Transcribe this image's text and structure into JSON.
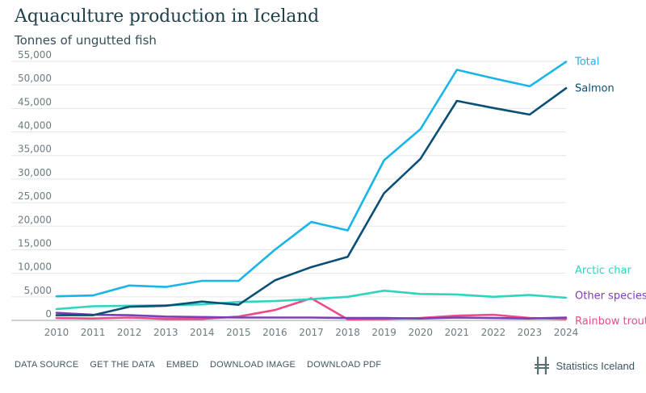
{
  "header": {
    "title": "Aquaculture production in Iceland",
    "subtitle": "Tonnes of ungutted fish"
  },
  "footer": {
    "links": [
      "DATA SOURCE",
      "GET THE DATA",
      "EMBED",
      "DOWNLOAD IMAGE",
      "DOWNLOAD PDF"
    ],
    "brand": "Statistics Iceland"
  },
  "chart_data": {
    "type": "line",
    "title": "Aquaculture production in Iceland",
    "subtitle": "Tonnes of ungutted fish",
    "xlabel": "",
    "ylabel": "",
    "x": [
      2010,
      2011,
      2012,
      2013,
      2014,
      2015,
      2016,
      2017,
      2018,
      2019,
      2020,
      2021,
      2022,
      2023,
      2024
    ],
    "ylim": [
      0,
      55000
    ],
    "yticks": [
      "0",
      "5,000",
      "10,000",
      "15,000",
      "20,000",
      "25,000",
      "30,000",
      "35,000",
      "40,000",
      "45,000",
      "50,000",
      "55,000"
    ],
    "grid": true,
    "legend": "end-of-line labels, right",
    "series": [
      {
        "name": "Total",
        "color": "#19b4e8",
        "values": [
          5100,
          5300,
          7400,
          7100,
          8400,
          8400,
          15000,
          20900,
          19100,
          34000,
          40600,
          53200,
          51400,
          49700,
          54900
        ]
      },
      {
        "name": "Salmon",
        "color": "#0a4f75",
        "values": [
          1100,
          1100,
          2900,
          3100,
          4000,
          3300,
          8500,
          11300,
          13500,
          27000,
          34300,
          46600,
          45100,
          43700,
          49300
        ]
      },
      {
        "name": "Arctic char",
        "color": "#2fd4c0",
        "values": [
          2400,
          3000,
          3100,
          3200,
          3400,
          3900,
          4100,
          4500,
          5000,
          6300,
          5600,
          5500,
          5000,
          5400,
          4800
        ]
      },
      {
        "name": "Other species",
        "color": "#7a3fb8",
        "values": [
          1600,
          1200,
          1100,
          800,
          700,
          600,
          600,
          600,
          500,
          500,
          400,
          600,
          500,
          400,
          600
        ]
      },
      {
        "name": "Rainbow trout",
        "color": "#ee4a8a",
        "values": [
          500,
          400,
          600,
          300,
          300,
          800,
          2200,
          4700,
          200,
          300,
          500,
          1000,
          1200,
          500,
          300
        ]
      }
    ]
  }
}
